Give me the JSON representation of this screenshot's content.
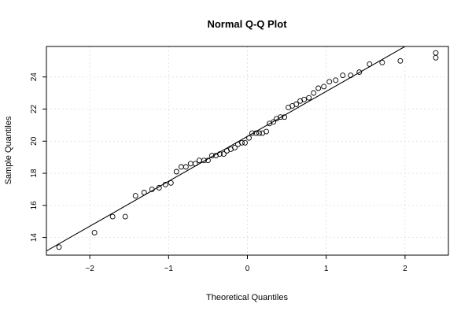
{
  "chart_data": {
    "type": "scatter",
    "title": "Normal Q-Q Plot",
    "xlabel": "Theoretical Quantiles",
    "ylabel": "Sample Quantiles",
    "xlim": [
      -2.55,
      2.55
    ],
    "ylim": [
      12.9,
      25.9
    ],
    "x_ticks": [
      -2,
      -1,
      0,
      1,
      2
    ],
    "y_ticks": [
      14,
      16,
      18,
      20,
      22,
      24
    ],
    "grid": true,
    "reference_line": {
      "intercept": 20.3,
      "slope": 2.8
    },
    "points": [
      {
        "x": -2.39,
        "y": 13.4
      },
      {
        "x": -1.94,
        "y": 14.3
      },
      {
        "x": -1.71,
        "y": 15.3
      },
      {
        "x": -1.55,
        "y": 15.3
      },
      {
        "x": -1.42,
        "y": 16.6
      },
      {
        "x": -1.31,
        "y": 16.8
      },
      {
        "x": -1.21,
        "y": 17.0
      },
      {
        "x": -1.12,
        "y": 17.1
      },
      {
        "x": -1.04,
        "y": 17.3
      },
      {
        "x": -0.97,
        "y": 17.4
      },
      {
        "x": -0.9,
        "y": 18.1
      },
      {
        "x": -0.84,
        "y": 18.4
      },
      {
        "x": -0.78,
        "y": 18.4
      },
      {
        "x": -0.72,
        "y": 18.6
      },
      {
        "x": -0.66,
        "y": 18.6
      },
      {
        "x": -0.61,
        "y": 18.8
      },
      {
        "x": -0.55,
        "y": 18.8
      },
      {
        "x": -0.5,
        "y": 18.8
      },
      {
        "x": -0.45,
        "y": 19.1
      },
      {
        "x": -0.4,
        "y": 19.1
      },
      {
        "x": -0.35,
        "y": 19.2
      },
      {
        "x": -0.3,
        "y": 19.2
      },
      {
        "x": -0.26,
        "y": 19.4
      },
      {
        "x": -0.21,
        "y": 19.5
      },
      {
        "x": -0.16,
        "y": 19.6
      },
      {
        "x": -0.12,
        "y": 19.8
      },
      {
        "x": -0.07,
        "y": 19.9
      },
      {
        "x": -0.03,
        "y": 19.9
      },
      {
        "x": 0.02,
        "y": 20.2
      },
      {
        "x": 0.06,
        "y": 20.5
      },
      {
        "x": 0.11,
        "y": 20.5
      },
      {
        "x": 0.15,
        "y": 20.5
      },
      {
        "x": 0.19,
        "y": 20.5
      },
      {
        "x": 0.24,
        "y": 20.6
      },
      {
        "x": 0.28,
        "y": 21.1
      },
      {
        "x": 0.33,
        "y": 21.2
      },
      {
        "x": 0.37,
        "y": 21.4
      },
      {
        "x": 0.42,
        "y": 21.5
      },
      {
        "x": 0.47,
        "y": 21.5
      },
      {
        "x": 0.52,
        "y": 22.1
      },
      {
        "x": 0.57,
        "y": 22.2
      },
      {
        "x": 0.62,
        "y": 22.3
      },
      {
        "x": 0.67,
        "y": 22.5
      },
      {
        "x": 0.72,
        "y": 22.6
      },
      {
        "x": 0.78,
        "y": 22.7
      },
      {
        "x": 0.84,
        "y": 23.0
      },
      {
        "x": 0.9,
        "y": 23.3
      },
      {
        "x": 0.97,
        "y": 23.4
      },
      {
        "x": 1.04,
        "y": 23.7
      },
      {
        "x": 1.12,
        "y": 23.8
      },
      {
        "x": 1.21,
        "y": 24.1
      },
      {
        "x": 1.31,
        "y": 24.1
      },
      {
        "x": 1.42,
        "y": 24.3
      },
      {
        "x": 1.55,
        "y": 24.8
      },
      {
        "x": 1.71,
        "y": 24.9
      },
      {
        "x": 1.94,
        "y": 25.0
      },
      {
        "x": 2.39,
        "y": 25.2
      },
      {
        "x": 2.39,
        "y": 25.5
      }
    ]
  }
}
